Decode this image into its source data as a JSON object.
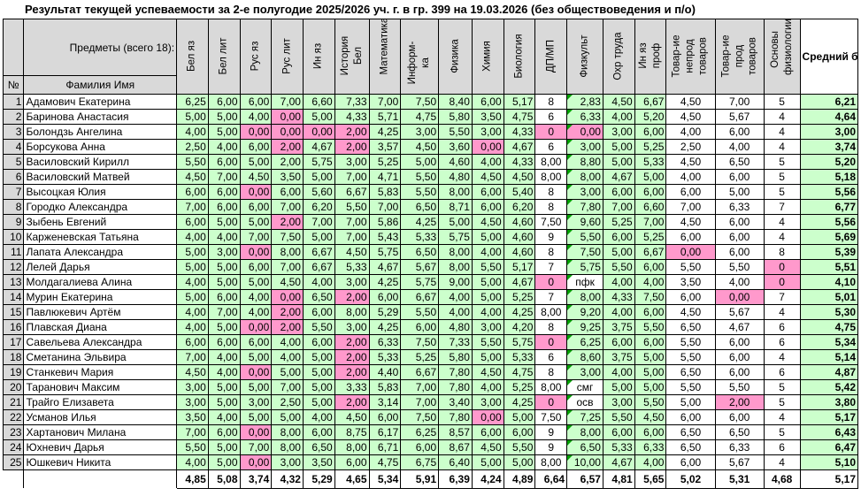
{
  "sheet": {
    "title": "Результат текущей успеваемости за 2-е полугодие 2025/2026 уч. г. в гр. 399 на 19.03.2026 (без обществоведения и п/о)",
    "subjects_label": "Предметы (всего 18):",
    "no_label": "№",
    "name_label": "Фамилия Имя",
    "avg_label": "Средний балл"
  },
  "subjects": [
    "Бел яз",
    "Бел лит",
    "Рус яз",
    "Рус лит",
    "Ин яз",
    "История Бел",
    "Математика",
    "Информ-ка",
    "Физика",
    "Химия",
    "Биология",
    "ДП/МП",
    "Физкульт",
    "Охр труда",
    "Ин яз проф",
    "Товар-ие непрод товаров",
    "Товар-ие прод товаров",
    "Основы физиологии"
  ],
  "students": [
    {
      "n": "1",
      "name": "Адамович Екатерина",
      "g": [
        "6,25",
        "6,00",
        "6,00",
        "7,00",
        "6,60",
        "7,33",
        "7,00",
        "7,50",
        "8,40",
        "6,00",
        "5,17",
        "8",
        "2,83",
        "4,50",
        "6,67",
        "4,50",
        "7,00",
        "5"
      ],
      "avg": "6,21"
    },
    {
      "n": "2",
      "name": "Баринова Анастасия",
      "g": [
        "5,00",
        "5,00",
        "4,00",
        "0,00",
        "5,00",
        "4,33",
        "5,71",
        "4,75",
        "5,80",
        "3,50",
        "4,75",
        "6",
        "6,33",
        "4,00",
        "5,20",
        "4,50",
        "5,67",
        "4"
      ],
      "avg": "4,64"
    },
    {
      "n": "3",
      "name": "Болондзь Ангелина",
      "g": [
        "4,00",
        "5,00",
        "0,00",
        "0,00",
        "0,00",
        "2,00",
        "4,25",
        "3,00",
        "5,50",
        "3,00",
        "4,33",
        "0",
        "0,00",
        "3,00",
        "6,00",
        "4,00",
        "6,00",
        "4"
      ],
      "avg": "3,00"
    },
    {
      "n": "4",
      "name": "Борсукова Анна",
      "g": [
        "2,50",
        "4,00",
        "6,00",
        "2,00",
        "4,67",
        "2,00",
        "3,57",
        "4,50",
        "3,60",
        "0,00",
        "4,67",
        "6",
        "3,00",
        "5,00",
        "5,25",
        "2,50",
        "4,00",
        "4"
      ],
      "avg": "3,74"
    },
    {
      "n": "5",
      "name": "Василовский Кирилл",
      "g": [
        "5,50",
        "6,00",
        "5,00",
        "2,00",
        "5,75",
        "3,00",
        "5,25",
        "5,00",
        "4,60",
        "4,00",
        "4,33",
        "8,00",
        "8,80",
        "5,00",
        "5,33",
        "4,50",
        "6,50",
        "5"
      ],
      "avg": "5,20"
    },
    {
      "n": "6",
      "name": "Василовский Матвей",
      "g": [
        "4,50",
        "7,00",
        "4,50",
        "3,50",
        "5,00",
        "7,00",
        "4,71",
        "5,50",
        "4,80",
        "4,50",
        "4,50",
        "8,00",
        "8,00",
        "4,67",
        "5,00",
        "4,00",
        "6,00",
        "5"
      ],
      "avg": "5,18"
    },
    {
      "n": "7",
      "name": "Высоцкая Юлия",
      "g": [
        "6,00",
        "6,00",
        "0,00",
        "6,00",
        "5,60",
        "6,67",
        "5,83",
        "5,50",
        "8,00",
        "6,00",
        "5,40",
        "8",
        "3,00",
        "6,00",
        "6,00",
        "6,00",
        "5,00",
        "5"
      ],
      "avg": "5,56"
    },
    {
      "n": "8",
      "name": "Городко Александра",
      "g": [
        "7,00",
        "6,00",
        "6,00",
        "7,00",
        "6,20",
        "5,50",
        "7,00",
        "6,50",
        "8,71",
        "6,00",
        "6,20",
        "8",
        "7,80",
        "7,00",
        "6,60",
        "7,00",
        "6,33",
        "7"
      ],
      "avg": "6,77"
    },
    {
      "n": "9",
      "name": "Зыбень Евгений",
      "g": [
        "6,00",
        "5,00",
        "5,00",
        "2,00",
        "7,00",
        "7,00",
        "5,86",
        "4,25",
        "5,00",
        "4,50",
        "4,60",
        "7,50",
        "9,60",
        "5,25",
        "7,00",
        "4,50",
        "6,00",
        "4"
      ],
      "avg": "5,56"
    },
    {
      "n": "10",
      "name": "Карженевская Татьяна",
      "g": [
        "4,00",
        "4,00",
        "7,00",
        "7,50",
        "5,00",
        "7,00",
        "5,43",
        "5,33",
        "5,75",
        "5,00",
        "4,60",
        "9",
        "5,50",
        "6,00",
        "5,25",
        "6,00",
        "6,00",
        "4"
      ],
      "avg": "5,69"
    },
    {
      "n": "11",
      "name": "Лапата Александра",
      "g": [
        "5,00",
        "3,00",
        "0,00",
        "8,00",
        "6,67",
        "4,50",
        "5,75",
        "6,50",
        "8,00",
        "4,00",
        "4,60",
        "8",
        "7,50",
        "5,00",
        "6,67",
        "0,00",
        "6,00",
        "8"
      ],
      "avg": "5,39"
    },
    {
      "n": "12",
      "name": "Лелей Дарья",
      "g": [
        "5,00",
        "5,00",
        "6,00",
        "7,00",
        "6,67",
        "5,33",
        "4,67",
        "5,67",
        "8,00",
        "5,50",
        "5,17",
        "7",
        "5,75",
        "5,50",
        "6,00",
        "5,50",
        "5,50",
        "0"
      ],
      "avg": "5,51"
    },
    {
      "n": "13",
      "name": "Молдагалиева Алина",
      "g": [
        "4,00",
        "5,00",
        "5,00",
        "4,50",
        "4,00",
        "3,00",
        "4,25",
        "5,75",
        "9,00",
        "5,00",
        "4,67",
        "0",
        "пфк",
        "4,00",
        "4,00",
        "3,50",
        "4,00",
        "0"
      ],
      "avg": "4,10"
    },
    {
      "n": "14",
      "name": "Мурин Екатерина",
      "g": [
        "5,00",
        "6,00",
        "4,00",
        "0,00",
        "6,50",
        "2,00",
        "6,00",
        "6,67",
        "4,00",
        "5,00",
        "5,25",
        "7",
        "8,00",
        "4,33",
        "7,50",
        "6,00",
        "0,00",
        "7"
      ],
      "avg": "5,01"
    },
    {
      "n": "15",
      "name": "Павлюкевич Артём",
      "g": [
        "4,00",
        "7,00",
        "4,00",
        "2,00",
        "6,00",
        "8,00",
        "5,29",
        "5,50",
        "4,00",
        "4,00",
        "4,25",
        "8,00",
        "9,20",
        "4,00",
        "6,00",
        "4,50",
        "5,67",
        "4"
      ],
      "avg": "5,30"
    },
    {
      "n": "16",
      "name": "Плавская Диана",
      "g": [
        "4,00",
        "5,00",
        "0,00",
        "2,00",
        "5,50",
        "3,00",
        "4,25",
        "6,00",
        "4,80",
        "3,00",
        "4,20",
        "8",
        "9,25",
        "3,75",
        "5,50",
        "6,50",
        "4,67",
        "6"
      ],
      "avg": "4,75"
    },
    {
      "n": "17",
      "name": "Савельева  Александра",
      "g": [
        "6,00",
        "6,00",
        "6,00",
        "4,00",
        "6,00",
        "2,00",
        "6,33",
        "7,50",
        "7,33",
        "5,50",
        "5,75",
        "0",
        "6,25",
        "6,00",
        "6,00",
        "5,50",
        "6,00",
        "6"
      ],
      "avg": "5,34"
    },
    {
      "n": "18",
      "name": "Сметанина Эльвира",
      "g": [
        "7,00",
        "4,00",
        "5,00",
        "4,00",
        "5,00",
        "2,00",
        "5,33",
        "5,25",
        "5,80",
        "5,00",
        "5,33",
        "6",
        "8,60",
        "3,75",
        "5,00",
        "5,50",
        "6,00",
        "4"
      ],
      "avg": "5,14"
    },
    {
      "n": "19",
      "name": "Станкевич Мария",
      "g": [
        "4,50",
        "4,00",
        "0,00",
        "5,00",
        "5,00",
        "2,00",
        "4,40",
        "6,67",
        "7,80",
        "4,50",
        "4,75",
        "8",
        "3,00",
        "4,00",
        "5,00",
        "6,50",
        "6,00",
        "6"
      ],
      "avg": "4,87"
    },
    {
      "n": "20",
      "name": "Таранович Максим",
      "g": [
        "3,00",
        "5,00",
        "5,00",
        "7,00",
        "5,00",
        "3,33",
        "5,83",
        "7,00",
        "7,80",
        "4,00",
        "5,25",
        "8,00",
        "смг",
        "5,00",
        "5,00",
        "5,50",
        "5,50",
        "5"
      ],
      "avg": "5,42"
    },
    {
      "n": "21",
      "name": "Трайго Елизавета",
      "g": [
        "3,00",
        "5,00",
        "3,00",
        "2,50",
        "5,00",
        "2,00",
        "3,14",
        "7,00",
        "3,40",
        "3,00",
        "4,25",
        "0",
        "осв",
        "3,00",
        "5,50",
        "5,00",
        "2,00",
        "5"
      ],
      "avg": "3,80"
    },
    {
      "n": "22",
      "name": "Усманов Илья",
      "g": [
        "3,50",
        "4,00",
        "5,00",
        "5,00",
        "4,00",
        "4,50",
        "6,00",
        "7,50",
        "7,80",
        "0,00",
        "5,00",
        "7,50",
        "7,25",
        "5,50",
        "4,50",
        "6,00",
        "6,00",
        "4"
      ],
      "avg": "5,17"
    },
    {
      "n": "23",
      "name": "Хартанович Милана",
      "g": [
        "7,00",
        "6,00",
        "0,00",
        "8,00",
        "6,00",
        "8,75",
        "6,17",
        "6,25",
        "8,57",
        "6,00",
        "6,00",
        "9",
        "8,00",
        "6,00",
        "6,00",
        "6,50",
        "6,50",
        "5"
      ],
      "avg": "6,43"
    },
    {
      "n": "24",
      "name": "Юхневич Дарья",
      "g": [
        "5,50",
        "5,00",
        "7,00",
        "8,00",
        "6,50",
        "8,00",
        "6,71",
        "6,00",
        "8,67",
        "4,50",
        "5,50",
        "9",
        "6,50",
        "5,33",
        "6,33",
        "6,50",
        "6,33",
        "6"
      ],
      "avg": "6,47"
    },
    {
      "n": "25",
      "name": "Юшкевич Никита",
      "g": [
        "4,00",
        "5,00",
        "0,00",
        "3,00",
        "3,50",
        "6,00",
        "4,75",
        "6,75",
        "6,40",
        "5,00",
        "5,00",
        "8,00",
        "10,00",
        "4,67",
        "4,00",
        "6,00",
        "5,67",
        "4"
      ],
      "avg": "5,10"
    }
  ],
  "totals": [
    "4,85",
    "5,08",
    "3,74",
    "4,32",
    "5,29",
    "4,65",
    "5,34",
    "5,91",
    "6,39",
    "4,24",
    "4,89",
    "6,64",
    "6,57",
    "4,81",
    "5,65",
    "5,02",
    "5,31",
    "4,68"
  ],
  "total_avg": "5,17",
  "colors": {
    "green": "#ccffcc",
    "pink": "#ff99cc",
    "header": "#d9d9d9"
  }
}
